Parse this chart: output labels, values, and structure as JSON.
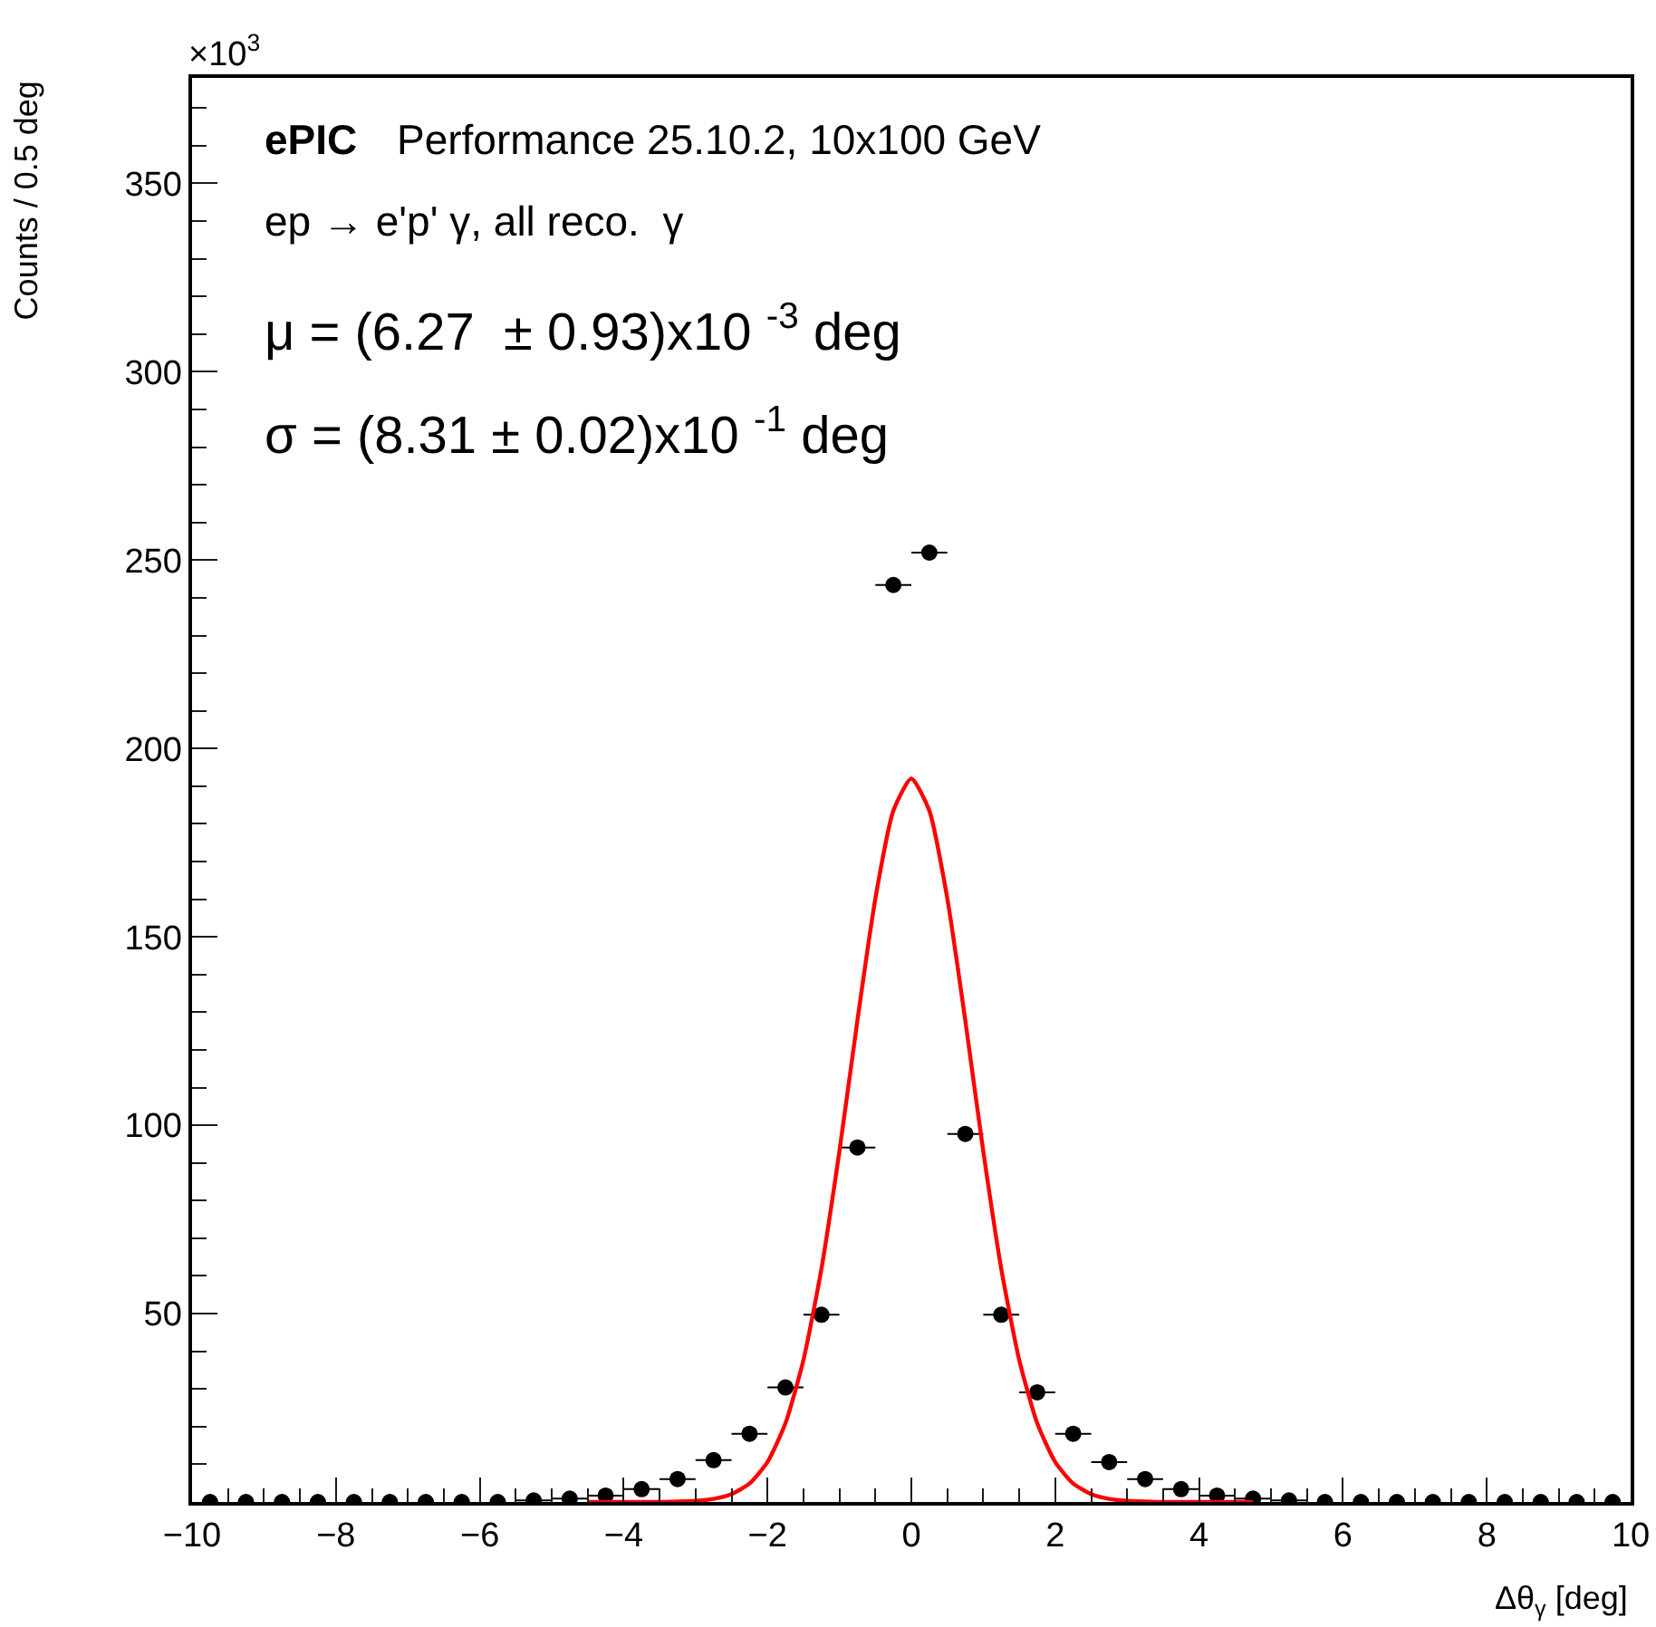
{
  "chart_data": {
    "type": "scatter",
    "xlabel": "Δθ$_{γ}$ [deg]",
    "ylabel": "Counts / 0.5 deg",
    "annotations": [
      "×10$^{3}$",
      "ePIC",
      "Performance 25.10.2, 10x100 GeV",
      "ep → e'p' γ, all reco.  γ",
      "μ = (6.27  ± 0.93)x10 $^{-3}$ deg",
      "σ = (8.31 ± 0.02)x10 $^{-1}$ deg"
    ],
    "x": [
      -9.75,
      -9.25,
      -8.75,
      -8.25,
      -7.75,
      -7.25,
      -6.75,
      -6.25,
      -5.75,
      -5.25,
      -4.75,
      -4.25,
      -3.75,
      -3.25,
      -2.75,
      -2.25,
      -1.75,
      -1.25,
      -0.75,
      -0.25,
      0.25,
      0.75,
      1.25,
      1.75,
      2.25,
      2.75,
      3.25,
      3.75,
      4.25,
      4.75,
      5.25,
      5.75,
      6.25,
      6.75,
      7.25,
      7.75,
      8.25,
      8.75,
      9.25,
      9.75
    ],
    "series": [
      {
        "type": "scatter",
        "color": "#000000",
        "marker": "circle",
        "values": [
          0,
          0,
          0,
          0,
          0,
          0,
          0,
          0,
          0,
          0.4,
          0.9,
          1.7,
          3.4,
          6.1,
          11.1,
          18.1,
          30.4,
          49.7,
          94.1,
          243.4,
          252,
          97.7,
          49.7,
          29.1,
          18.1,
          10.6,
          6.1,
          3.4,
          1.7,
          0.9,
          0.4,
          0,
          0,
          0,
          0,
          0,
          0,
          0,
          0,
          0
        ],
        "xerrors": [
          null,
          null,
          null,
          null,
          null,
          null,
          null,
          null,
          null,
          0.25,
          0.25,
          0.25,
          0.25,
          0.25,
          0.25,
          0.25,
          0.25,
          0.25,
          0.25,
          0.25,
          0.25,
          0.25,
          0.25,
          0.25,
          0.25,
          0.25,
          0.25,
          0.25,
          0.25,
          0.25,
          0.25,
          null,
          null,
          null,
          null,
          null,
          null,
          null,
          null,
          null
        ]
      },
      {
        "type": "line",
        "color": "#ff0000",
        "marker": "none",
        "line_style": "solid",
        "x": [
          -4.5,
          -4.0,
          -3.5,
          -3.0,
          -2.75,
          -2.5,
          -2.25,
          -2.0,
          -1.75,
          -1.5,
          -1.25,
          -1.0,
          -0.75,
          -0.5,
          -0.25,
          0,
          0.25,
          0.5,
          0.75,
          1.0,
          1.25,
          1.5,
          1.75,
          2.0,
          2.25,
          2.5,
          2.75,
          3.0,
          3.5,
          4.0,
          4.5,
          4.75
        ],
        "values": [
          0,
          0,
          0,
          0.3,
          0.8,
          2.1,
          4.9,
          10.6,
          20.9,
          37.7,
          61.9,
          93.1,
          127.8,
          160.2,
          183.5,
          192,
          183.5,
          160.2,
          127.8,
          93.1,
          61.9,
          37.7,
          20.9,
          10.6,
          4.9,
          2.1,
          0.8,
          0.3,
          0,
          0,
          0,
          0
        ]
      }
    ],
    "xlim": [
      -10,
      10
    ],
    "xticks": [
      {
        "value": -10,
        "label": "−10"
      },
      {
        "value": -8,
        "label": "−8"
      },
      {
        "value": -6,
        "label": "−6"
      },
      {
        "value": -4,
        "label": "−4"
      },
      {
        "value": -2,
        "label": "−2"
      },
      0,
      2,
      4,
      6,
      8,
      10
    ],
    "ylim": [
      0,
      378
    ],
    "yticks": [
      50,
      100,
      150,
      200,
      250,
      300,
      350
    ]
  }
}
